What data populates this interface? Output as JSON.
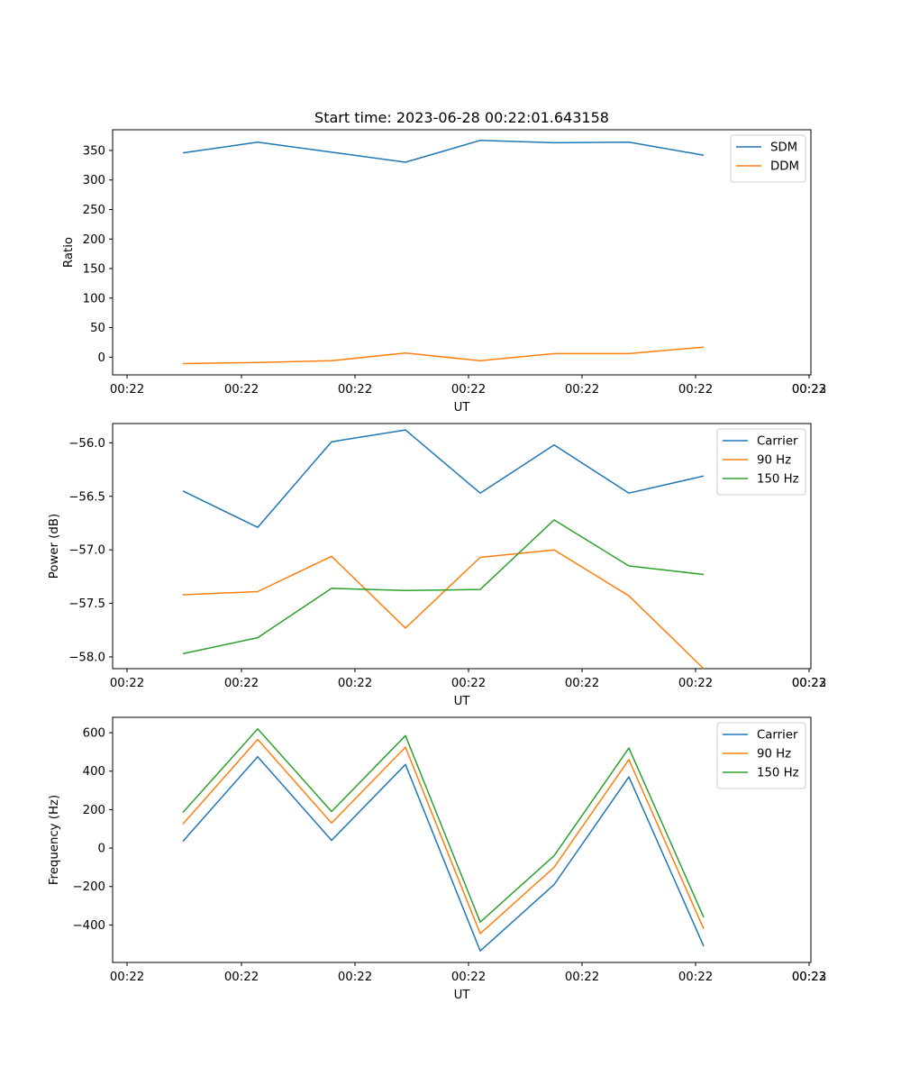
{
  "figure_title": "Start time: 2023-06-28 00:22:01.643158",
  "chart_data": [
    {
      "type": "line",
      "title": "Start time: 2023-06-28 00:22:01.643158",
      "xlabel": "UT",
      "ylabel": "Ratio",
      "x_tick_labels": [
        "00:22",
        "00:22",
        "00:22",
        "00:22",
        "00:22",
        "00:22",
        "00:22",
        "00:23"
      ],
      "y_ticks": [
        "0",
        "50",
        "100",
        "150",
        "200",
        "250",
        "300",
        "350"
      ],
      "ylim": [
        -30,
        385
      ],
      "legend_position": "top-right",
      "series": [
        {
          "name": "SDM",
          "color": "#1f77b4",
          "values": [
            346,
            364,
            347,
            330,
            367,
            363,
            364,
            342
          ]
        },
        {
          "name": "DDM",
          "color": "#ff7f0e",
          "values": [
            -11,
            -9,
            -6,
            7,
            -6,
            6,
            6,
            17
          ]
        }
      ]
    },
    {
      "type": "line",
      "xlabel": "UT",
      "ylabel": "Power (dB)",
      "x_tick_labels": [
        "00:22",
        "00:22",
        "00:22",
        "00:22",
        "00:22",
        "00:22",
        "00:22",
        "00:23"
      ],
      "y_ticks": [
        "−58.0",
        "−57.5",
        "−57.0",
        "−56.5",
        "−56.0"
      ],
      "ylim": [
        -58.11,
        -55.82
      ],
      "legend_position": "top-right",
      "series": [
        {
          "name": "Carrier",
          "color": "#1f77b4",
          "values": [
            -56.45,
            -56.79,
            -55.99,
            -55.88,
            -56.47,
            -56.02,
            -56.47,
            -56.31
          ]
        },
        {
          "name": "90 Hz",
          "color": "#ff7f0e",
          "values": [
            -57.42,
            -57.39,
            -57.06,
            -57.73,
            -57.07,
            -57.0,
            -57.43,
            -58.11
          ]
        },
        {
          "name": "150 Hz",
          "color": "#2ca02c",
          "values": [
            -57.97,
            -57.82,
            -57.36,
            -57.38,
            -57.37,
            -56.72,
            -57.15,
            -57.23
          ]
        }
      ]
    },
    {
      "type": "line",
      "xlabel": "UT",
      "ylabel": "Frequency (Hz)",
      "x_tick_labels": [
        "00:22",
        "00:22",
        "00:22",
        "00:22",
        "00:22",
        "00:22",
        "00:22",
        "00:23"
      ],
      "y_ticks": [
        "−400",
        "−200",
        "0",
        "200",
        "400",
        "600"
      ],
      "ylim": [
        -595,
        680
      ],
      "legend_position": "top-right",
      "series": [
        {
          "name": "Carrier",
          "color": "#1f77b4",
          "values": [
            35,
            475,
            40,
            435,
            -535,
            -190,
            370,
            -510
          ]
        },
        {
          "name": "90 Hz",
          "color": "#ff7f0e",
          "values": [
            125,
            565,
            130,
            525,
            -445,
            -100,
            460,
            -420
          ]
        },
        {
          "name": "150 Hz",
          "color": "#2ca02c",
          "values": [
            185,
            620,
            190,
            585,
            -385,
            -40,
            520,
            -360
          ]
        }
      ]
    }
  ]
}
